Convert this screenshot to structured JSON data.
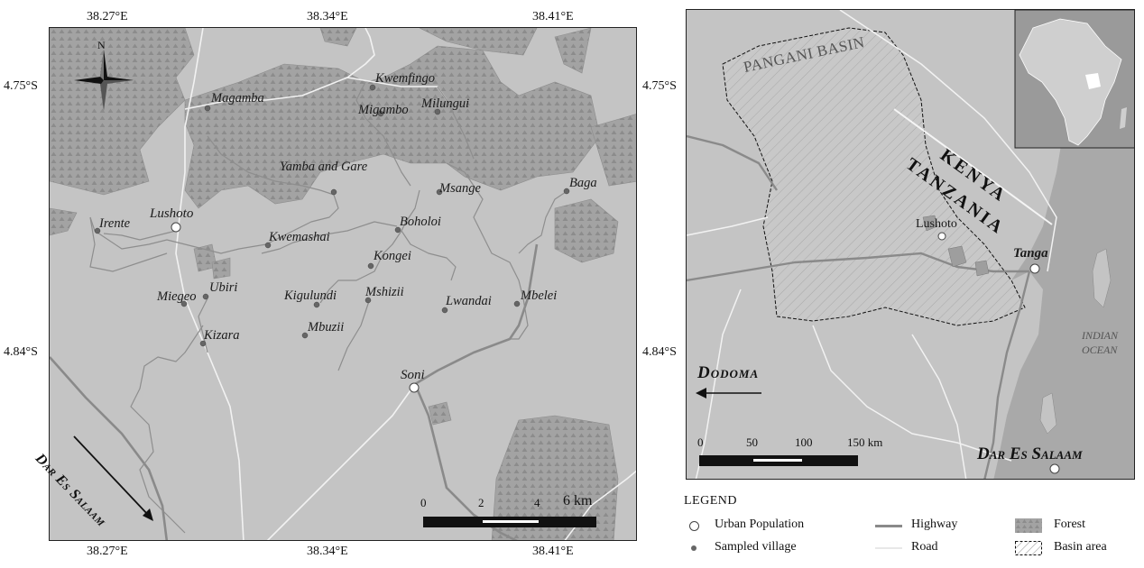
{
  "left_map": {
    "top_ticks": [
      "38.27°E",
      "38.34°E",
      "38.41°E"
    ],
    "bottom_ticks": [
      "38.27°E",
      "38.34°E",
      "38.41°E"
    ],
    "left_ticks": [
      "4.75°S",
      "4.84°S"
    ],
    "north_label": "N",
    "scale": {
      "labels": [
        "0",
        "2",
        "4"
      ],
      "end": "6 km"
    },
    "arrow_label": "Dar Es Salaam",
    "urban": [
      {
        "name": "Lushoto"
      },
      {
        "name": "Soni"
      }
    ],
    "villages": [
      {
        "name": "Magamba"
      },
      {
        "name": "Kwemfingo"
      },
      {
        "name": "Migambo"
      },
      {
        "name": "Milungui"
      },
      {
        "name": "Yamba and Gare"
      },
      {
        "name": "Msange"
      },
      {
        "name": "Baga"
      },
      {
        "name": "Irente"
      },
      {
        "name": "Boholoi"
      },
      {
        "name": "Kwemashai"
      },
      {
        "name": "Kongei"
      },
      {
        "name": "Kigulundi"
      },
      {
        "name": "Mshizii"
      },
      {
        "name": "Lwandai"
      },
      {
        "name": "Mbelei"
      },
      {
        "name": "Miegeo"
      },
      {
        "name": "Ubiri"
      },
      {
        "name": "Mbuzii"
      },
      {
        "name": "Kizara"
      }
    ]
  },
  "right_map": {
    "basin_label": "PANGANI BASIN",
    "country_labels": [
      "KENYA",
      "TANZANIA"
    ],
    "towns": [
      "Lushoto",
      "Tanga"
    ],
    "ocean_label": [
      "INDIAN",
      "OCEAN"
    ],
    "dodoma_label": "Dodoma",
    "dar_label": "Dar Es Salaam",
    "scale": {
      "labels": [
        "0",
        "50",
        "100",
        "150 km"
      ]
    }
  },
  "legend": {
    "title": "LEGEND",
    "items": [
      {
        "label": "Urban Population",
        "symbol": "urban-population-symbol"
      },
      {
        "label": "Sampled village",
        "symbol": "sampled-village-symbol"
      },
      {
        "label": "Highway",
        "symbol": "highway-line"
      },
      {
        "label": "Road",
        "symbol": "road-line"
      },
      {
        "label": "Forest",
        "symbol": "forest-pattern"
      },
      {
        "label": "Basin area",
        "symbol": "basin-area-pattern"
      }
    ]
  },
  "colors": {
    "land": "#c4c4c4",
    "forest": "#9e9e9e",
    "highway": "#8a8a8a",
    "road": "#f2f2f2",
    "ocean": "#a6a6a6",
    "frame": "#222222"
  }
}
